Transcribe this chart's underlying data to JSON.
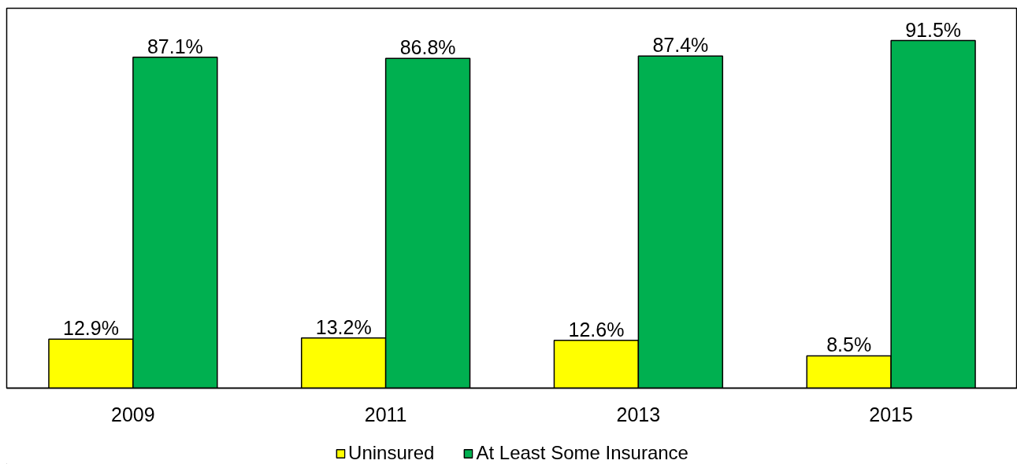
{
  "chart_data": {
    "type": "bar",
    "categories": [
      "2009",
      "2011",
      "2013",
      "2015"
    ],
    "ylim": [
      0,
      100
    ],
    "tick_labels": "x",
    "legend": "bottom",
    "series": [
      {
        "name": "Uninsured",
        "color": "#ffff00",
        "values": [
          12.9,
          13.2,
          12.6,
          8.5
        ],
        "value_labels": [
          "12.9%",
          "13.2%",
          "12.6%",
          "8.5%"
        ]
      },
      {
        "name": "At Least Some Insurance",
        "color": "#00b050",
        "values": [
          87.1,
          86.8,
          87.4,
          91.5
        ],
        "value_labels": [
          "87.1%",
          "86.8%",
          "87.4%",
          "91.5%"
        ]
      }
    ]
  }
}
